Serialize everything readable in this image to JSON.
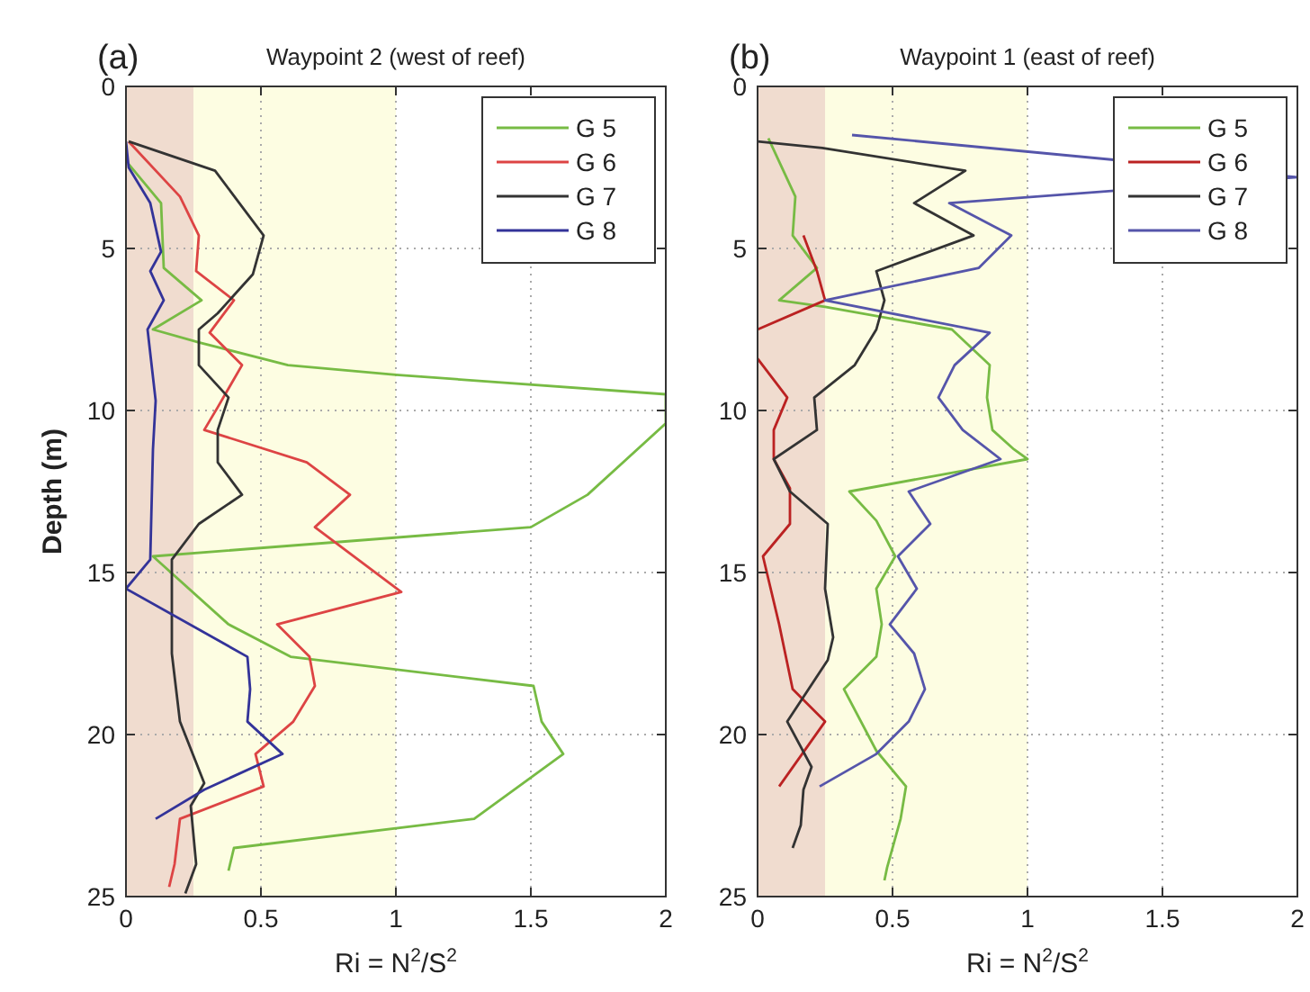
{
  "chart_data": [
    {
      "type": "line",
      "title": "Waypoint 2 (west of reef)",
      "xlabel": "Ri = N$^{2}$/S$^{2}$",
      "ylabel": "Depth (m)",
      "annotations": [
        "(a)"
      ],
      "xlim": [
        0,
        2
      ],
      "xticks": [
        0,
        0.5,
        1,
        1.5,
        2
      ],
      "ylim": [
        25,
        0
      ],
      "yticks": [
        0,
        5,
        10,
        15,
        20,
        25
      ],
      "grid": true,
      "legend": "top right",
      "line_style": "solid",
      "bands": [
        {
          "axis": "x",
          "from": 0,
          "to": 0.25,
          "color": "#f0dccf"
        },
        {
          "axis": "x",
          "from": 0.25,
          "to": 1,
          "color": "#fdfde2"
        }
      ],
      "series": [
        {
          "name": "G 5",
          "color": "#77bb44",
          "x": [
            0.01,
            0.13,
            0.14,
            0.28,
            0.1,
            0.27,
            0.6,
            1.0,
            2.0,
            2.0,
            1.71,
            1.5,
            0.1,
            0.38,
            0.61,
            1.51,
            1.54,
            1.62,
            1.29,
            0.4,
            0.38
          ],
          "values": [
            2.4,
            3.6,
            5.6,
            6.6,
            7.5,
            7.9,
            8.6,
            8.9,
            9.5,
            10.4,
            12.6,
            13.6,
            14.5,
            16.6,
            17.6,
            18.5,
            19.6,
            20.6,
            22.6,
            23.5,
            24.2
          ]
        },
        {
          "name": "G 6",
          "color": "#dd4444",
          "x": [
            0.01,
            0.2,
            0.27,
            0.26,
            0.4,
            0.31,
            0.43,
            0.34,
            0.29,
            0.67,
            0.83,
            0.7,
            1.02,
            0.56,
            0.68,
            0.7,
            0.62,
            0.48,
            0.51,
            0.2,
            0.18,
            0.16
          ],
          "values": [
            1.7,
            3.4,
            4.6,
            5.7,
            6.6,
            7.6,
            8.6,
            9.9,
            10.6,
            11.6,
            12.6,
            13.6,
            15.6,
            16.6,
            17.6,
            18.5,
            19.6,
            20.6,
            21.6,
            22.6,
            24.0,
            24.7
          ]
        },
        {
          "name": "G 7",
          "color": "#333333",
          "x": [
            0.01,
            0.33,
            0.51,
            0.47,
            0.34,
            0.27,
            0.27,
            0.38,
            0.34,
            0.34,
            0.43,
            0.27,
            0.17,
            0.17,
            0.2,
            0.29,
            0.24,
            0.26,
            0.22
          ],
          "values": [
            1.7,
            2.6,
            4.6,
            5.8,
            7.0,
            7.5,
            8.6,
            9.6,
            10.6,
            11.6,
            12.6,
            13.5,
            14.6,
            17.5,
            19.6,
            21.5,
            22.2,
            24.0,
            24.9
          ]
        },
        {
          "name": "G 8",
          "color": "#333399",
          "x": [
            0,
            0.01,
            0.09,
            0.13,
            0.09,
            0.14,
            0.08,
            0.11,
            0.1,
            0.09,
            0,
            0.45,
            0.46,
            0.45,
            0.58,
            0.29,
            0.11
          ],
          "values": [
            1.7,
            2.5,
            3.6,
            5.1,
            5.7,
            6.6,
            7.5,
            9.7,
            11.2,
            14.6,
            15.5,
            17.6,
            18.6,
            19.6,
            20.6,
            21.7,
            22.6
          ]
        }
      ]
    },
    {
      "type": "line",
      "title": "Waypoint 1 (east of reef)",
      "xlabel": "Ri = N$^{2}$/S$^{2}$",
      "annotations": [
        "(b)"
      ],
      "xlim": [
        0,
        2
      ],
      "xticks": [
        0,
        0.5,
        1,
        1.5,
        2
      ],
      "ylim": [
        25,
        0
      ],
      "yticks": [
        0,
        5,
        10,
        15,
        20,
        25
      ],
      "grid": true,
      "legend": "top right",
      "line_style": "solid",
      "bands": [
        {
          "axis": "x",
          "from": 0,
          "to": 0.25,
          "color": "#f0dccf"
        },
        {
          "axis": "x",
          "from": 0.25,
          "to": 1,
          "color": "#fdfde2"
        }
      ],
      "series": [
        {
          "name": "G 5",
          "color": "#77bb44",
          "x": [
            0.04,
            0.14,
            0.13,
            0.22,
            0.08,
            0.25,
            0.72,
            0.86,
            0.85,
            0.87,
            0.95,
            1.0,
            0.34,
            0.44,
            0.51,
            0.44,
            0.46,
            0.44,
            0.32,
            0.44,
            0.55,
            0.53,
            0.48,
            0.47
          ],
          "values": [
            1.6,
            3.4,
            4.6,
            5.6,
            6.6,
            6.8,
            7.5,
            8.6,
            9.6,
            10.6,
            11.2,
            11.5,
            12.5,
            13.4,
            14.5,
            15.5,
            16.6,
            17.6,
            18.6,
            20.5,
            21.6,
            22.6,
            24.1,
            24.5
          ]
        },
        {
          "name": "G 6",
          "color": "#bb2222",
          "x": [
            0.17,
            0.22,
            0.25,
            0,
            null,
            0,
            0.11,
            0.06,
            0.06,
            0.12,
            0.12,
            0.02,
            0.08,
            0.13,
            0.25,
            0.08
          ],
          "values": [
            4.6,
            5.7,
            6.6,
            7.5,
            null,
            8.4,
            9.6,
            10.6,
            11.5,
            12.4,
            13.5,
            14.5,
            16.6,
            18.6,
            19.6,
            21.6
          ]
        },
        {
          "name": "G 7",
          "color": "#333333",
          "x": [
            0,
            0.24,
            0.77,
            0.58,
            0.8,
            0.44,
            0.47,
            0.44,
            0.36,
            0.21,
            0.22,
            0.06,
            0.12,
            0.26,
            0.25,
            0.28,
            0.26,
            0.11,
            0.2,
            0.17,
            0.16,
            0.13
          ],
          "values": [
            1.7,
            1.9,
            2.6,
            3.6,
            4.6,
            5.7,
            6.6,
            7.5,
            8.6,
            9.6,
            10.6,
            11.5,
            12.5,
            13.5,
            15.5,
            17.0,
            17.7,
            19.6,
            21.0,
            21.7,
            22.8,
            23.5
          ]
        },
        {
          "name": "G 8",
          "color": "#5555aa",
          "x": [
            0.35,
            2.0,
            0.71,
            0.94,
            0.82,
            0.25,
            0.86,
            0.73,
            0.67,
            0.76,
            0.9,
            0.56,
            0.64,
            0.52,
            0.59,
            0.49,
            0.58,
            0.62,
            0.56,
            0.44,
            0.23
          ],
          "values": [
            1.5,
            2.8,
            3.6,
            4.6,
            5.6,
            6.6,
            7.6,
            8.6,
            9.6,
            10.6,
            11.5,
            12.5,
            13.5,
            14.5,
            15.5,
            16.6,
            17.5,
            18.6,
            19.6,
            20.6,
            21.6
          ]
        }
      ]
    }
  ]
}
